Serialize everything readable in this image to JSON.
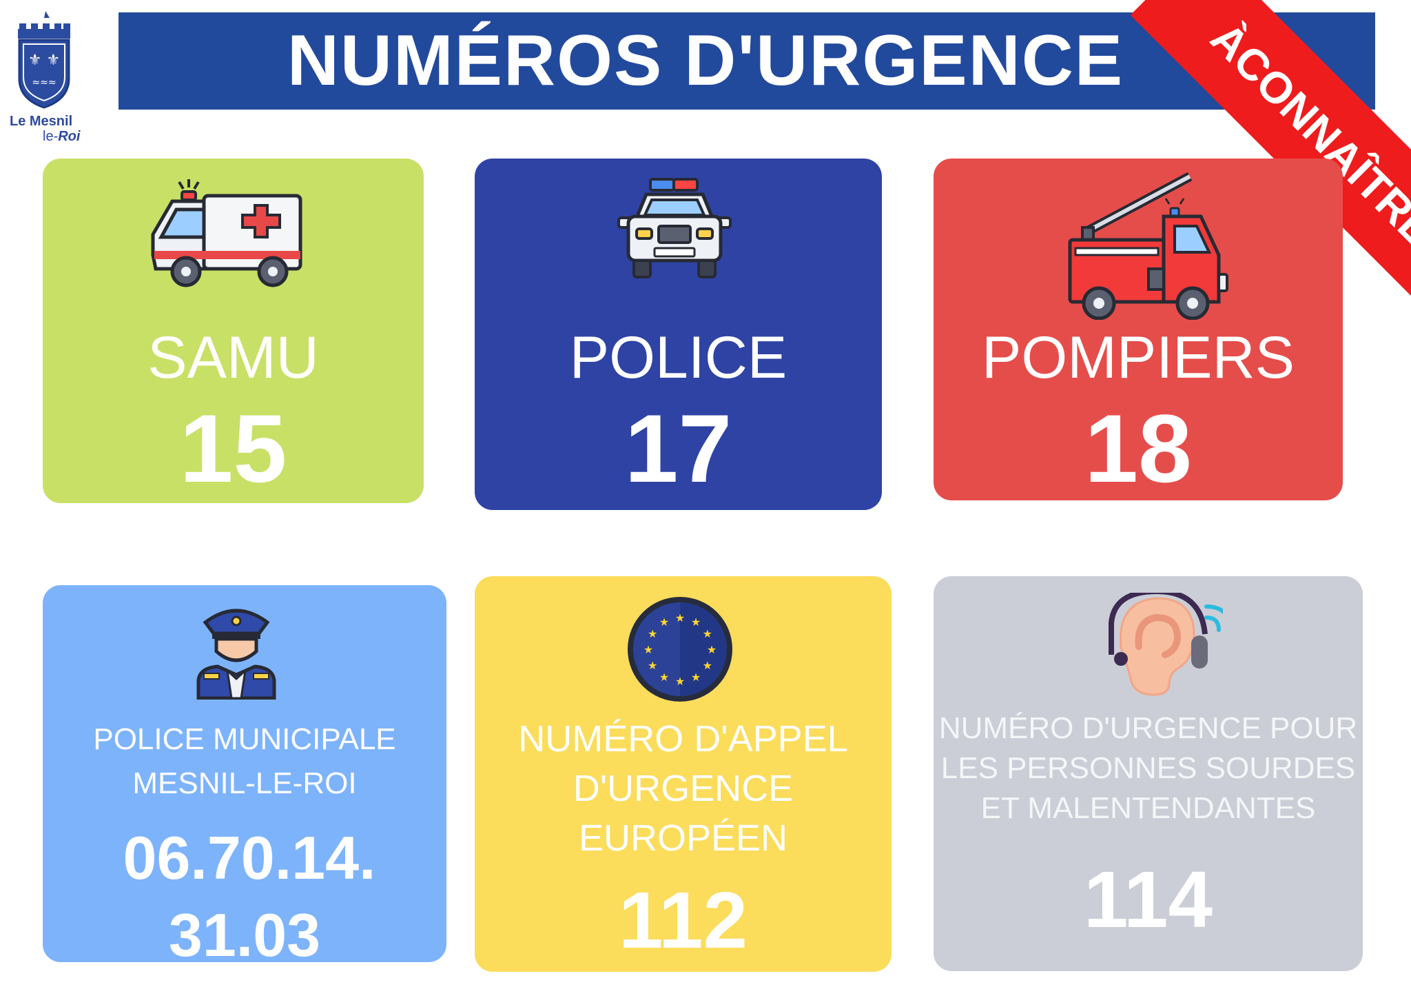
{
  "header": {
    "title": "NUMÉROS D'URGENCE"
  },
  "ribbon": {
    "text": "À CONNAÎTRE"
  },
  "logo": {
    "line1": "Le Mesnil",
    "line2a": "le-",
    "line2b": "Roi"
  },
  "cards": {
    "samu": {
      "label": "SAMU",
      "number": "15",
      "icon": "ambulance-icon"
    },
    "police": {
      "label": "POLICE",
      "number": "17",
      "icon": "police-car-icon"
    },
    "pompiers": {
      "label": "POMPIERS",
      "number": "18",
      "icon": "fire-truck-icon"
    },
    "police_municipale": {
      "label_line1": "POLICE MUNICIPALE",
      "label_line2": "MESNIL-LE-ROI",
      "number_line1": "06.70.14.",
      "number_line2": "31.03",
      "icon": "police-officer-icon"
    },
    "europeen": {
      "label_line1": "NUMÉRO D'APPEL",
      "label_line2": "D'URGENCE",
      "label_line3": "EUROPÉEN",
      "number": "112",
      "icon": "eu-flag-icon"
    },
    "sourds": {
      "label_line1": "NUMÉRO D'URGENCE POUR",
      "label_line2": "LES PERSONNES SOURDES",
      "label_line3": "ET MALENTENDANTES",
      "number": "114",
      "icon": "hearing-aid-icon"
    }
  },
  "colors": {
    "header": "#224a9c",
    "ribbon": "#ee1c1c",
    "samu": "#c8e066",
    "police": "#2f43a5",
    "pompiers": "#e54d4b",
    "police_municipale": "#7db3fb",
    "europeen": "#fbdc5b",
    "sourds": "#cbced6"
  }
}
